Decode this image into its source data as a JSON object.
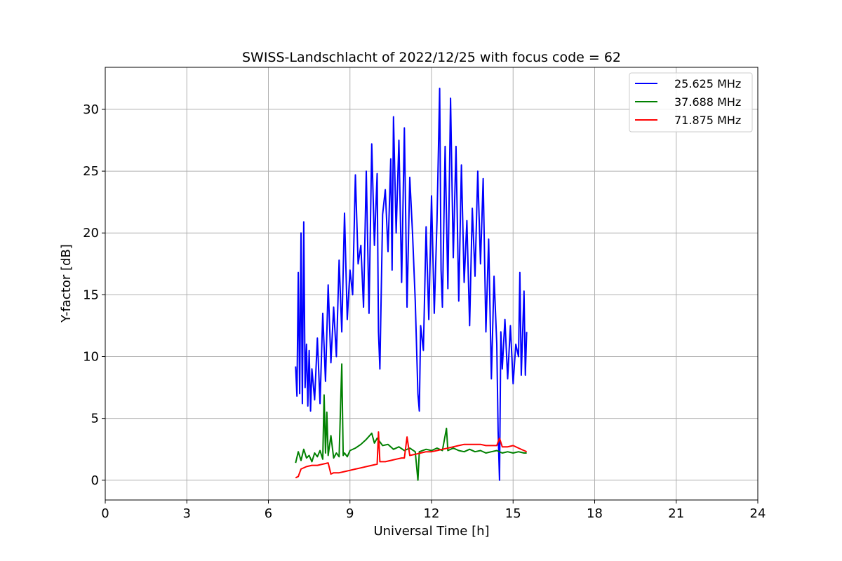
{
  "chart_data": {
    "type": "line",
    "title": "SWISS-Landschlacht of 2022/12/25 with focus code = 62",
    "xlabel": "Universal Time [h]",
    "ylabel": "Y-factor [dB]",
    "xlim": [
      0,
      24
    ],
    "ylim": [
      -1.6,
      33.4
    ],
    "xticks": [
      0,
      3,
      6,
      9,
      12,
      15,
      18,
      21,
      24
    ],
    "yticks": [
      0,
      5,
      10,
      15,
      20,
      25,
      30
    ],
    "grid": true,
    "legend_position": "top-right",
    "series": [
      {
        "name": "25.625 MHz",
        "color": "#0000ff",
        "points": [
          [
            7.0,
            9.2
          ],
          [
            7.05,
            6.8
          ],
          [
            7.1,
            16.8
          ],
          [
            7.15,
            7.0
          ],
          [
            7.2,
            20.0
          ],
          [
            7.25,
            6.2
          ],
          [
            7.3,
            20.9
          ],
          [
            7.35,
            7.5
          ],
          [
            7.4,
            11.0
          ],
          [
            7.45,
            6.0
          ],
          [
            7.5,
            10.5
          ],
          [
            7.55,
            5.6
          ],
          [
            7.6,
            9.0
          ],
          [
            7.7,
            6.5
          ],
          [
            7.8,
            11.5
          ],
          [
            7.9,
            6.2
          ],
          [
            8.0,
            13.5
          ],
          [
            8.1,
            8.0
          ],
          [
            8.2,
            15.8
          ],
          [
            8.3,
            9.5
          ],
          [
            8.4,
            14.0
          ],
          [
            8.5,
            10.0
          ],
          [
            8.6,
            17.8
          ],
          [
            8.7,
            12.0
          ],
          [
            8.8,
            21.6
          ],
          [
            8.9,
            13.0
          ],
          [
            9.0,
            17.0
          ],
          [
            9.1,
            15.0
          ],
          [
            9.2,
            24.7
          ],
          [
            9.3,
            17.5
          ],
          [
            9.4,
            19.0
          ],
          [
            9.5,
            14.0
          ],
          [
            9.6,
            25.0
          ],
          [
            9.7,
            13.5
          ],
          [
            9.8,
            27.2
          ],
          [
            9.9,
            19.0
          ],
          [
            10.0,
            24.8
          ],
          [
            10.05,
            12.0
          ],
          [
            10.1,
            9.0
          ],
          [
            10.2,
            21.5
          ],
          [
            10.3,
            23.5
          ],
          [
            10.4,
            18.5
          ],
          [
            10.5,
            26.0
          ],
          [
            10.55,
            17.0
          ],
          [
            10.6,
            29.4
          ],
          [
            10.7,
            20.0
          ],
          [
            10.8,
            27.5
          ],
          [
            10.9,
            16.0
          ],
          [
            11.0,
            28.5
          ],
          [
            11.1,
            14.0
          ],
          [
            11.2,
            24.5
          ],
          [
            11.3,
            20.0
          ],
          [
            11.4,
            14.5
          ],
          [
            11.5,
            7.0
          ],
          [
            11.55,
            5.6
          ],
          [
            11.6,
            12.5
          ],
          [
            11.7,
            10.5
          ],
          [
            11.8,
            20.5
          ],
          [
            11.9,
            13.0
          ],
          [
            12.0,
            23.0
          ],
          [
            12.1,
            13.5
          ],
          [
            12.2,
            21.0
          ],
          [
            12.3,
            31.7
          ],
          [
            12.35,
            17.0
          ],
          [
            12.4,
            14.0
          ],
          [
            12.5,
            27.0
          ],
          [
            12.6,
            15.5
          ],
          [
            12.7,
            30.9
          ],
          [
            12.8,
            18.0
          ],
          [
            12.9,
            27.0
          ],
          [
            13.0,
            14.5
          ],
          [
            13.1,
            25.5
          ],
          [
            13.2,
            16.0
          ],
          [
            13.3,
            21.0
          ],
          [
            13.4,
            12.5
          ],
          [
            13.5,
            22.0
          ],
          [
            13.6,
            16.5
          ],
          [
            13.7,
            25.0
          ],
          [
            13.8,
            17.5
          ],
          [
            13.9,
            24.4
          ],
          [
            14.0,
            12.0
          ],
          [
            14.1,
            19.5
          ],
          [
            14.2,
            8.2
          ],
          [
            14.3,
            16.5
          ],
          [
            14.4,
            11.0
          ],
          [
            14.45,
            4.0
          ],
          [
            14.5,
            0.0
          ],
          [
            14.55,
            12.0
          ],
          [
            14.6,
            9.0
          ],
          [
            14.7,
            13.0
          ],
          [
            14.8,
            8.2
          ],
          [
            14.9,
            12.5
          ],
          [
            15.0,
            7.8
          ],
          [
            15.1,
            11.0
          ],
          [
            15.2,
            10.0
          ],
          [
            15.25,
            16.8
          ],
          [
            15.3,
            8.5
          ],
          [
            15.4,
            15.3
          ],
          [
            15.45,
            8.5
          ],
          [
            15.5,
            12.0
          ]
        ]
      },
      {
        "name": "37.688 MHz",
        "color": "#008000",
        "points": [
          [
            7.0,
            1.4
          ],
          [
            7.1,
            2.3
          ],
          [
            7.2,
            1.6
          ],
          [
            7.3,
            2.5
          ],
          [
            7.4,
            1.8
          ],
          [
            7.5,
            2.0
          ],
          [
            7.6,
            1.5
          ],
          [
            7.7,
            2.2
          ],
          [
            7.8,
            1.9
          ],
          [
            7.9,
            2.4
          ],
          [
            8.0,
            1.7
          ],
          [
            8.05,
            6.9
          ],
          [
            8.1,
            2.2
          ],
          [
            8.15,
            5.5
          ],
          [
            8.2,
            2.0
          ],
          [
            8.3,
            3.6
          ],
          [
            8.4,
            1.8
          ],
          [
            8.5,
            2.2
          ],
          [
            8.6,
            1.9
          ],
          [
            8.7,
            9.4
          ],
          [
            8.75,
            2.0
          ],
          [
            8.8,
            2.2
          ],
          [
            8.9,
            1.9
          ],
          [
            9.0,
            2.4
          ],
          [
            9.2,
            2.6
          ],
          [
            9.4,
            2.9
          ],
          [
            9.6,
            3.3
          ],
          [
            9.8,
            3.8
          ],
          [
            9.9,
            3.0
          ],
          [
            10.0,
            3.4
          ],
          [
            10.2,
            2.8
          ],
          [
            10.4,
            2.9
          ],
          [
            10.6,
            2.5
          ],
          [
            10.8,
            2.7
          ],
          [
            11.0,
            2.4
          ],
          [
            11.2,
            2.6
          ],
          [
            11.4,
            2.3
          ],
          [
            11.5,
            0.0
          ],
          [
            11.55,
            2.3
          ],
          [
            11.8,
            2.5
          ],
          [
            12.0,
            2.4
          ],
          [
            12.2,
            2.6
          ],
          [
            12.4,
            2.4
          ],
          [
            12.55,
            4.2
          ],
          [
            12.6,
            2.4
          ],
          [
            12.8,
            2.6
          ],
          [
            13.0,
            2.4
          ],
          [
            13.2,
            2.3
          ],
          [
            13.4,
            2.5
          ],
          [
            13.6,
            2.3
          ],
          [
            13.8,
            2.4
          ],
          [
            14.0,
            2.2
          ],
          [
            14.2,
            2.3
          ],
          [
            14.4,
            2.4
          ],
          [
            14.6,
            2.2
          ],
          [
            14.8,
            2.3
          ],
          [
            15.0,
            2.2
          ],
          [
            15.2,
            2.3
          ],
          [
            15.4,
            2.2
          ],
          [
            15.5,
            2.2
          ]
        ]
      },
      {
        "name": "71.875 MHz",
        "color": "#ff0000",
        "points": [
          [
            7.0,
            0.2
          ],
          [
            7.1,
            0.3
          ],
          [
            7.2,
            0.9
          ],
          [
            7.4,
            1.1
          ],
          [
            7.6,
            1.2
          ],
          [
            7.8,
            1.2
          ],
          [
            8.0,
            1.3
          ],
          [
            8.2,
            1.4
          ],
          [
            8.3,
            0.5
          ],
          [
            8.4,
            0.6
          ],
          [
            8.6,
            0.6
          ],
          [
            8.8,
            0.7
          ],
          [
            9.0,
            0.8
          ],
          [
            9.2,
            0.9
          ],
          [
            9.4,
            1.0
          ],
          [
            9.6,
            1.1
          ],
          [
            9.8,
            1.2
          ],
          [
            10.0,
            1.3
          ],
          [
            10.05,
            3.9
          ],
          [
            10.1,
            1.5
          ],
          [
            10.3,
            1.5
          ],
          [
            10.5,
            1.6
          ],
          [
            10.7,
            1.7
          ],
          [
            10.9,
            1.8
          ],
          [
            11.0,
            1.8
          ],
          [
            11.1,
            3.5
          ],
          [
            11.2,
            2.0
          ],
          [
            11.4,
            2.1
          ],
          [
            11.6,
            2.2
          ],
          [
            11.8,
            2.3
          ],
          [
            12.0,
            2.3
          ],
          [
            12.2,
            2.4
          ],
          [
            12.4,
            2.5
          ],
          [
            12.6,
            2.6
          ],
          [
            12.8,
            2.7
          ],
          [
            13.0,
            2.8
          ],
          [
            13.2,
            2.9
          ],
          [
            13.4,
            2.9
          ],
          [
            13.6,
            2.9
          ],
          [
            13.8,
            2.9
          ],
          [
            14.0,
            2.8
          ],
          [
            14.2,
            2.8
          ],
          [
            14.4,
            2.8
          ],
          [
            14.5,
            3.4
          ],
          [
            14.6,
            2.7
          ],
          [
            14.8,
            2.7
          ],
          [
            15.0,
            2.8
          ],
          [
            15.2,
            2.6
          ],
          [
            15.4,
            2.4
          ],
          [
            15.5,
            2.3
          ]
        ]
      }
    ]
  }
}
